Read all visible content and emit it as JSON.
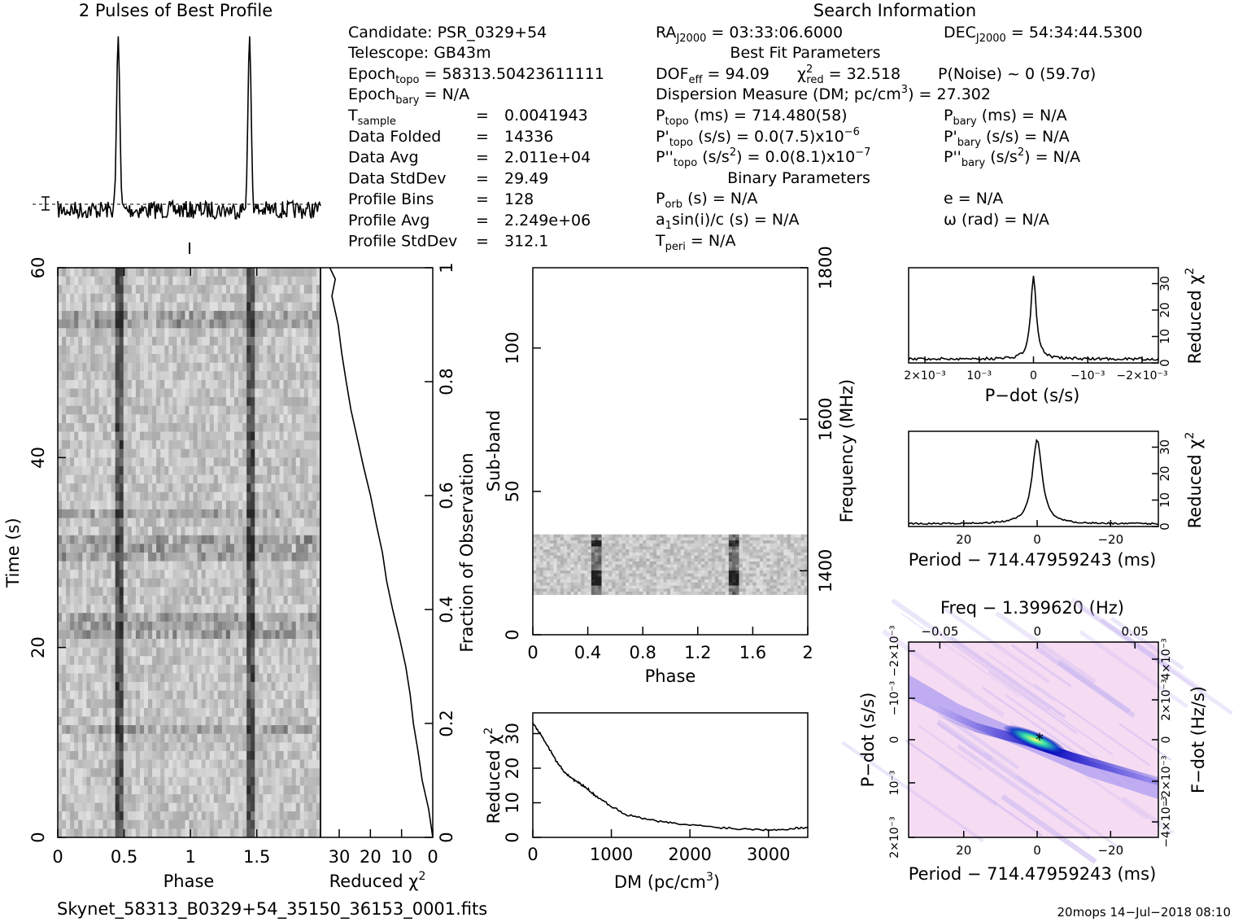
{
  "header": {
    "profile_title": "2 Pulses of Best Profile",
    "search_title": "Search Information",
    "candidate": "Candidate:  PSR_0329+54",
    "telescope": "Telescope:  GB43m",
    "epoch_topo": "= 58313.50423611111",
    "epoch_bary": "= N/A",
    "stats": [
      {
        "label": "Data Folded",
        "value": "14336"
      },
      {
        "label": "Data Avg",
        "value": "2.011e+04"
      },
      {
        "label": "Data StdDev",
        "value": "29.49"
      },
      {
        "label": "Profile Bins",
        "value": "128"
      },
      {
        "label": "Profile Avg",
        "value": "2.249e+06"
      },
      {
        "label": "Profile StdDev",
        "value": "312.1"
      }
    ],
    "tsample_value": "0.0041943",
    "ra": "= 03:33:06.6000",
    "dec": "= 54:34:44.5300",
    "best_fit_title": "Best Fit Parameters",
    "dof": "= 94.09",
    "chi2": "= 32.518",
    "pnoise": "P(Noise) ~ 0    (59.7σ)",
    "dm_line": "= 27.302",
    "p_topo": "714.480(58)",
    "p_bary": "= N/A",
    "pdot_topo": "0.0(7.5)x10",
    "pdot_exp": "−6",
    "pdot_bary": "= N/A",
    "pddot_topo": "0.0(8.1)x10",
    "pddot_exp": "−7",
    "pddot_bary": "= N/A",
    "binary_title": "Binary Parameters",
    "porb": "= N/A",
    "e": "e = N/A",
    "a1sini": "= N/A",
    "omega": "ω (rad) = N/A",
    "tperi": "= N/A"
  },
  "footer": {
    "filename": "Skynet_58313_B0329+54_35150_36153_0001.fits",
    "stamp": "20mops 14−Jul−2018 08:10"
  },
  "chart_data": [
    {
      "type": "line",
      "id": "profile",
      "title": "2 Pulses of Best Profile",
      "x_range": [
        0,
        2
      ],
      "peaks_at_phase": [
        0.46,
        1.46
      ],
      "peak_relative_height": 1.0,
      "baseline_relative_height": 0.0
    },
    {
      "type": "heatmap",
      "id": "time-phase",
      "xlabel": "Phase",
      "ylabel": "Time (s)",
      "xlim": [
        0,
        2
      ],
      "ylim": [
        0,
        60
      ],
      "xticks": [
        "0",
        "0.5",
        "1",
        "1.5"
      ],
      "yticks": [
        "0",
        "20",
        "40",
        "60"
      ],
      "pulse_phases": [
        0.46,
        1.46
      ]
    },
    {
      "type": "line",
      "id": "time-chi2",
      "xlabel": "Reduced χ²",
      "ylabel_right": "Fraction of Observation",
      "xlim": [
        36,
        0
      ],
      "ylim": [
        0,
        1
      ],
      "xticks": [
        "30",
        "20",
        "10",
        "0"
      ],
      "yticks_right": [
        "0",
        "0.2",
        "0.4",
        "0.6",
        "0.8",
        "1"
      ],
      "points": [
        [
          0,
          0
        ],
        [
          1.5,
          0.05
        ],
        [
          3,
          0.1
        ],
        [
          5,
          0.15
        ],
        [
          6,
          0.2
        ],
        [
          7,
          0.25
        ],
        [
          9,
          0.3
        ],
        [
          11,
          0.35
        ],
        [
          13,
          0.4
        ],
        [
          15,
          0.45
        ],
        [
          16.5,
          0.5
        ],
        [
          18,
          0.55
        ],
        [
          20,
          0.6
        ],
        [
          22,
          0.65
        ],
        [
          24,
          0.7
        ],
        [
          26,
          0.75
        ],
        [
          28,
          0.8
        ],
        [
          29.5,
          0.85
        ],
        [
          30.5,
          0.9
        ],
        [
          32,
          0.95
        ],
        [
          31,
          0.98
        ],
        [
          33,
          1.0
        ]
      ]
    },
    {
      "type": "heatmap",
      "id": "subband-phase",
      "xlabel": "Phase",
      "ylabel": "Sub-band",
      "ylabel_right": "Frequency (MHz)",
      "xlim": [
        0,
        2
      ],
      "ylim": [
        0,
        128
      ],
      "xticks": [
        "0",
        "0.4",
        "0.8",
        "1.2",
        "1.6",
        "2"
      ],
      "yticks": [
        "0",
        "50",
        "100"
      ],
      "yticks_right": [
        "1400",
        "1600",
        "1800"
      ],
      "data_subbands": [
        14,
        35
      ],
      "pulse_phases": [
        0.46,
        1.46
      ]
    },
    {
      "type": "line",
      "id": "dm-chi2",
      "xlabel": "DM (pc/cm³)",
      "ylabel": "Reduced χ²",
      "xlim": [
        0,
        3500
      ],
      "ylim": [
        0,
        36
      ],
      "xticks": [
        "0",
        "1000",
        "2000",
        "3000"
      ],
      "yticks": [
        "0",
        "10",
        "20",
        "30"
      ],
      "points": [
        [
          0,
          33
        ],
        [
          100,
          30
        ],
        [
          200,
          26
        ],
        [
          300,
          22
        ],
        [
          400,
          19
        ],
        [
          500,
          17
        ],
        [
          600,
          15.5
        ],
        [
          700,
          14
        ],
        [
          800,
          12
        ],
        [
          1000,
          9
        ],
        [
          1200,
          6.5
        ],
        [
          1500,
          5
        ],
        [
          1800,
          4
        ],
        [
          2200,
          3.2
        ],
        [
          2600,
          2.5
        ],
        [
          3000,
          2.2
        ],
        [
          3300,
          2.5
        ],
        [
          3500,
          3
        ]
      ]
    },
    {
      "type": "line",
      "id": "pdot-chi2",
      "xlabel": "P−dot (s/s)",
      "ylabel_right": "Reduced χ²",
      "xlim": [
        0.0023,
        -0.0023
      ],
      "ylim": [
        0,
        36
      ],
      "xticks": [
        "2×10⁻³",
        "10⁻³",
        "0",
        "−10⁻³",
        "−2×10⁻³"
      ],
      "yticks_right": [
        "0",
        "10",
        "20",
        "30"
      ],
      "peak": [
        0,
        33
      ],
      "baseline": 1.5
    },
    {
      "type": "line",
      "id": "period-chi2",
      "xlabel": "Period − 714.47959243 (ms)",
      "ylabel_right": "Reduced χ²",
      "xlim": [
        35,
        -33
      ],
      "ylim": [
        0,
        36
      ],
      "xticks": [
        "20",
        "0",
        "−20"
      ],
      "yticks_right": [
        "0",
        "10",
        "20",
        "30"
      ],
      "peak": [
        0,
        33
      ],
      "baseline": 1
    },
    {
      "type": "heatmap",
      "id": "period-pdot",
      "title_top": "Freq − 1.399620 (Hz)",
      "xlabel": "Period − 714.47959243 (ms)",
      "ylabel": "P−dot (s/s)",
      "ylabel_right": "F−dot (Hz/s)",
      "xlim": [
        35,
        -33
      ],
      "xticks": [
        "20",
        "0",
        "−20"
      ],
      "xticks_top": [
        "−0.05",
        "0",
        "0.05"
      ],
      "yticks": [
        "2×10⁻³",
        "10⁻³",
        "0",
        "−10⁻³",
        "−2×10⁻³"
      ],
      "yticks_right": [
        "−4×10⁻³",
        "−2×10⁻³",
        "0",
        "2×10⁻³",
        "4×10⁻³"
      ],
      "best_fit_marker": [
        0,
        0
      ]
    }
  ]
}
